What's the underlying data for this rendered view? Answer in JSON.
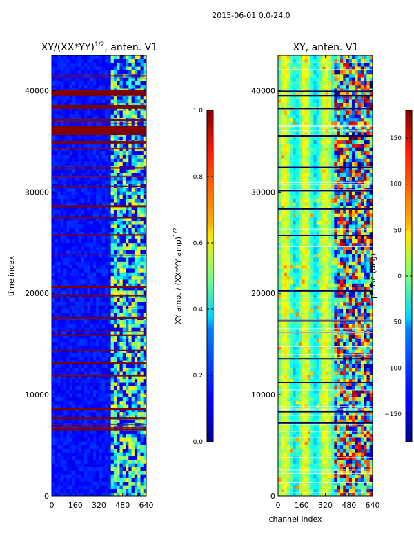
{
  "header": {
    "title": "2015-06-01 0.0-24.0"
  },
  "chart_data": [
    {
      "type": "heatmap",
      "title": "XY/(XX*YY)",
      "title_superscript": "1/2",
      "title_suffix": ", anten. V1",
      "xlabel": "",
      "ylabel": "time index",
      "xlim": [
        0,
        640
      ],
      "ylim": [
        0,
        43500
      ],
      "xticks": [
        0,
        160,
        320,
        480,
        640
      ],
      "yticks": [
        0,
        10000,
        20000,
        30000,
        40000
      ],
      "xtick_labels": [
        "0",
        "160",
        "320",
        "480",
        "640"
      ],
      "ytick_labels": [
        "0",
        "10000",
        "20000",
        "30000",
        "40000"
      ],
      "colormap": "jet",
      "features": {
        "active_channel_start": 400,
        "flagged_rows_start": [
          39500,
          38200,
          37000,
          35600,
          34800,
          32300,
          30500,
          28500,
          27400,
          25700,
          20500,
          19700,
          17500,
          15800,
          14300,
          13000,
          11800,
          8500,
          7600,
          6500
        ],
        "flagged_rows_height": [
          600,
          400,
          200,
          900,
          200,
          150,
          150,
          200,
          150,
          150,
          200,
          150,
          150,
          150,
          150,
          200,
          150,
          150,
          150,
          150
        ],
        "thin_red_lines": [
          41500,
          41200,
          40500,
          38800,
          36800,
          36300,
          34300,
          33500,
          31600,
          23800,
          19200,
          18600,
          16300,
          12400,
          10900,
          9800,
          7100,
          6800
        ]
      },
      "colorbar": {
        "label": "XY amp. / (XX*YY amp)",
        "label_superscript": "1/2",
        "range": [
          0.0,
          1.0
        ],
        "ticks": [
          0.0,
          0.2,
          0.4,
          0.6,
          0.8,
          1.0
        ],
        "tick_labels": [
          "0.0",
          "0.2",
          "0.4",
          "0.6",
          "0.8",
          "1.0"
        ]
      }
    },
    {
      "type": "heatmap",
      "title": "XY, anten. V1",
      "xlabel": "channel index",
      "ylabel": "",
      "xlim": [
        0,
        640
      ],
      "ylim": [
        0,
        43500
      ],
      "xticks": [
        0,
        160,
        320,
        480,
        640
      ],
      "yticks": [
        0,
        10000,
        20000,
        30000,
        40000
      ],
      "xtick_labels": [
        "0",
        "160",
        "320",
        "480",
        "640"
      ],
      "ytick_labels": [
        "0",
        "10000",
        "20000",
        "30000",
        "40000"
      ],
      "colormap": "jet",
      "features": {
        "active_channel_start": 380,
        "dark_rows": [
          40000,
          39600,
          38300,
          35600,
          32500,
          30200,
          28400,
          25800,
          20300,
          17400,
          16200,
          13600,
          11300,
          8400,
          7300
        ]
      },
      "colorbar": {
        "label": "phase (deg)",
        "range": [
          -180,
          180
        ],
        "ticks": [
          -150,
          -100,
          -50,
          0,
          50,
          100,
          150
        ],
        "tick_labels": [
          "−150",
          "−100",
          "−50",
          "0",
          "50",
          "100",
          "150"
        ]
      }
    }
  ]
}
